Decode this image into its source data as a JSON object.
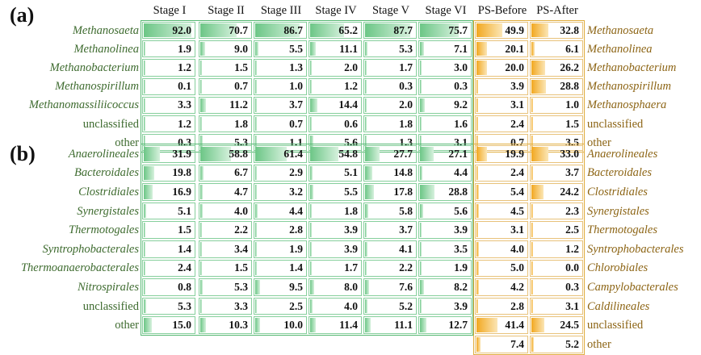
{
  "chart_data": [
    {
      "type": "table",
      "panel": "(a)",
      "columns": [
        "Stage I",
        "Stage II",
        "Stage III",
        "Stage IV",
        "Stage V",
        "Stage VI",
        "PS-Before",
        "PS-After"
      ],
      "stage_rows": [
        "Methanosaeta",
        "Methanolinea",
        "Methanobacterium",
        "Methanospirillum",
        "Methanomassiliicoccus",
        "unclassified",
        "other"
      ],
      "ps_rows": [
        "Methanosaeta",
        "Methanolinea",
        "Methanobacterium",
        "Methanospirillum",
        "Methanosphaera",
        "unclassified",
        "other"
      ],
      "stage_values": [
        [
          92.0,
          70.7,
          86.7,
          65.2,
          87.7,
          75.7
        ],
        [
          1.9,
          9.0,
          5.5,
          11.1,
          5.3,
          7.1
        ],
        [
          1.2,
          1.5,
          1.3,
          2.0,
          1.7,
          3.0
        ],
        [
          0.1,
          0.7,
          1.0,
          1.2,
          0.3,
          0.3
        ],
        [
          3.3,
          11.2,
          3.7,
          14.4,
          2.0,
          9.2
        ],
        [
          1.2,
          1.8,
          0.7,
          0.6,
          1.8,
          1.6
        ],
        [
          0.3,
          5.3,
          1.1,
          5.6,
          1.3,
          3.1
        ]
      ],
      "ps_values": [
        [
          49.9,
          32.8
        ],
        [
          20.1,
          6.1
        ],
        [
          20.0,
          26.2
        ],
        [
          3.9,
          28.8
        ],
        [
          3.1,
          1.0
        ],
        [
          2.4,
          1.5
        ],
        [
          0.7,
          3.5
        ]
      ]
    },
    {
      "type": "table",
      "panel": "(b)",
      "columns": [
        "Stage I",
        "Stage II",
        "Stage III",
        "Stage IV",
        "Stage V",
        "Stage VI",
        "PS-Before",
        "PS-After"
      ],
      "stage_rows": [
        "Anaerolineales",
        "Bacteroidales",
        "Clostridiales",
        "Synergistales",
        "Thermotogales",
        "Syntrophobacterales",
        "Thermoanaerobacterales",
        "Nitrospirales",
        "unclassified",
        "other"
      ],
      "ps_rows": [
        "Anaerolineales",
        "Bacteroidales",
        "Clostridiales",
        "Synergistales",
        "Thermotogales",
        "Syntrophobacterales",
        "Chlorobiales",
        "Campylobacterales",
        "Caldilineales",
        "unclassified",
        "other"
      ],
      "stage_values": [
        [
          31.9,
          58.8,
          61.4,
          54.8,
          27.7,
          27.1
        ],
        [
          19.8,
          6.7,
          2.9,
          5.1,
          14.8,
          4.4
        ],
        [
          16.9,
          4.7,
          3.2,
          5.5,
          17.8,
          28.8
        ],
        [
          5.1,
          4.0,
          4.4,
          1.8,
          5.8,
          5.6
        ],
        [
          1.5,
          2.2,
          2.8,
          3.9,
          3.7,
          3.9
        ],
        [
          1.4,
          3.4,
          1.9,
          3.9,
          4.1,
          3.5
        ],
        [
          2.4,
          1.5,
          1.4,
          1.7,
          2.2,
          1.9
        ],
        [
          0.8,
          5.3,
          9.5,
          8.0,
          7.6,
          8.2
        ],
        [
          5.3,
          3.3,
          2.5,
          4.0,
          5.2,
          3.9
        ],
        [
          15.0,
          10.3,
          10.0,
          11.4,
          11.1,
          12.7
        ]
      ],
      "ps_values": [
        [
          19.9,
          33.0
        ],
        [
          2.4,
          3.7
        ],
        [
          5.4,
          24.2
        ],
        [
          4.5,
          2.3
        ],
        [
          3.1,
          2.5
        ],
        [
          4.0,
          1.2
        ],
        [
          5.0,
          0.0
        ],
        [
          4.2,
          0.3
        ],
        [
          2.8,
          3.1
        ],
        [
          41.4,
          24.5
        ],
        [
          7.4,
          5.2
        ]
      ]
    }
  ],
  "colors": {
    "stage_bar": "#6cc686",
    "stage_border": "#57b873",
    "ps_bar": "#f2a820",
    "ps_border": "#e0ad3e",
    "stage_label": "#3e6b2f",
    "ps_label": "#8c6414"
  }
}
